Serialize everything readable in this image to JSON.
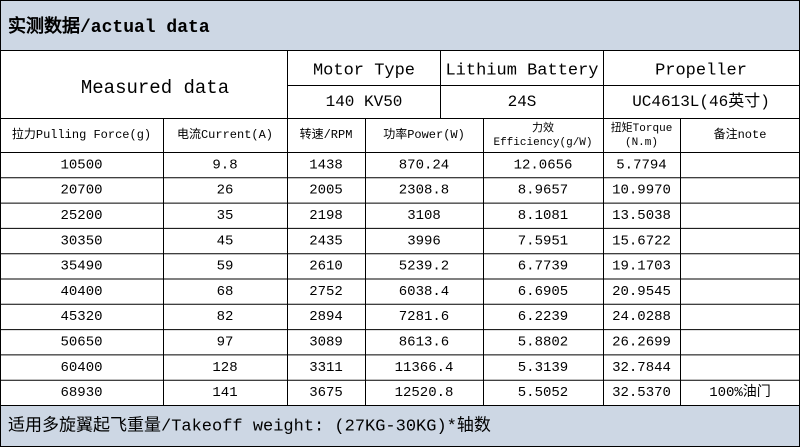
{
  "title": "实测数据/actual data",
  "header": {
    "measured": "Measured data",
    "motor": {
      "label": "Motor Type",
      "value": "140 KV50"
    },
    "battery": {
      "label": "Lithium Battery",
      "value": "24S"
    },
    "propeller": {
      "label": "Propeller",
      "value": "UC4613L(46英寸)"
    }
  },
  "columns": [
    [
      "拉力Pulling Force(g)"
    ],
    [
      "电流Current(A)"
    ],
    [
      "转速/RPM"
    ],
    [
      "功率Power(W)"
    ],
    [
      "力效",
      "Efficiency(g/W)"
    ],
    [
      "扭矩Torque",
      "(N.m)"
    ],
    [
      "备注note"
    ]
  ],
  "rows": [
    [
      "10500",
      "9.8",
      "1438",
      "870.24",
      "12.0656",
      "5.7794"
    ],
    [
      "20700",
      "26",
      "2005",
      "2308.8",
      "8.9657",
      "10.9970"
    ],
    [
      "25200",
      "35",
      "2198",
      "3108",
      "8.1081",
      "13.5038"
    ],
    [
      "30350",
      "45",
      "2435",
      "3996",
      "7.5951",
      "15.6722"
    ],
    [
      "35490",
      "59",
      "2610",
      "5239.2",
      "6.7739",
      "19.1703"
    ],
    [
      "40400",
      "68",
      "2752",
      "6038.4",
      "6.6905",
      "20.9545"
    ],
    [
      "45320",
      "82",
      "2894",
      "7281.6",
      "6.2239",
      "24.0288"
    ],
    [
      "50650",
      "97",
      "3089",
      "8613.6",
      "5.8802",
      "26.2699"
    ],
    [
      "60400",
      "128",
      "3311",
      "11366.4",
      "5.3139",
      "32.7844"
    ],
    [
      "68930",
      "141",
      "3675",
      "12520.8",
      "5.5052",
      "32.5370",
      "100%油门"
    ]
  ],
  "footer": "适用多旋翼起飞重量/Takeoff weight: (27KG-30KG)*轴数"
}
